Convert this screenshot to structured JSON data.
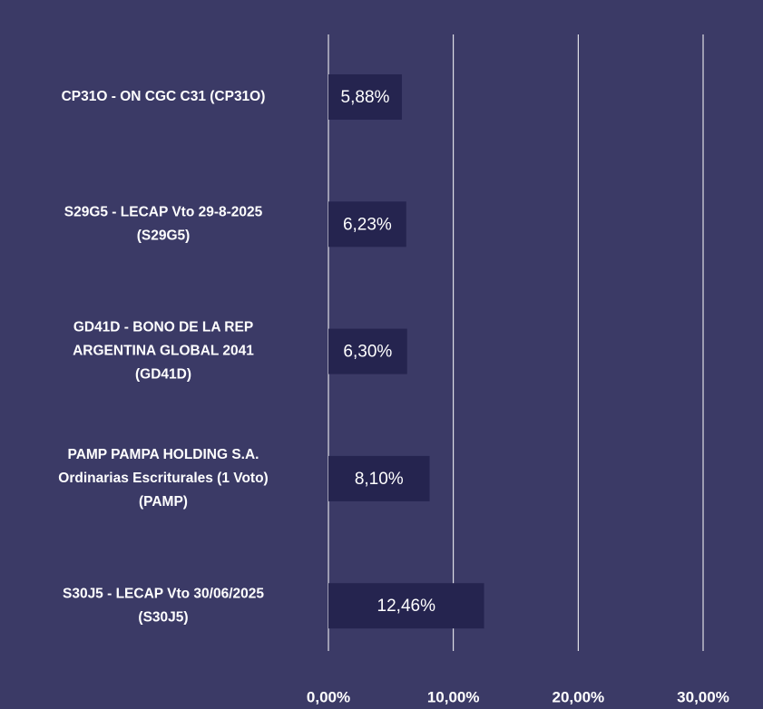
{
  "chart_data": {
    "type": "barh",
    "categories": [
      [
        "CP31O - ON CGC C31 (CP31O)"
      ],
      [
        "S29G5 - LECAP Vto 29-8-2025",
        "(S29G5)"
      ],
      [
        "GD41D - BONO DE LA  REP",
        "ARGENTINA GLOBAL 2041",
        "(GD41D)"
      ],
      [
        "PAMP PAMPA HOLDING S.A.",
        "Ordinarias Escriturales (1 Voto)",
        "(PAMP)"
      ],
      [
        "S30J5 - LECAP Vto 30/06/2025",
        "(S30J5)"
      ]
    ],
    "values": [
      5.88,
      6.23,
      6.3,
      8.1,
      12.46
    ],
    "value_labels": [
      "5,88%",
      "6,23%",
      "6,30%",
      "8,10%",
      "12,46%"
    ],
    "color": "#25244f",
    "xlim": [
      0,
      30
    ],
    "xticks": [
      {
        "value": 0,
        "label": "0,00%"
      },
      {
        "value": 10,
        "label": "10,00%"
      },
      {
        "value": 20,
        "label": "20,00%"
      },
      {
        "value": 30,
        "label": "30,00%"
      }
    ],
    "grid": true
  }
}
